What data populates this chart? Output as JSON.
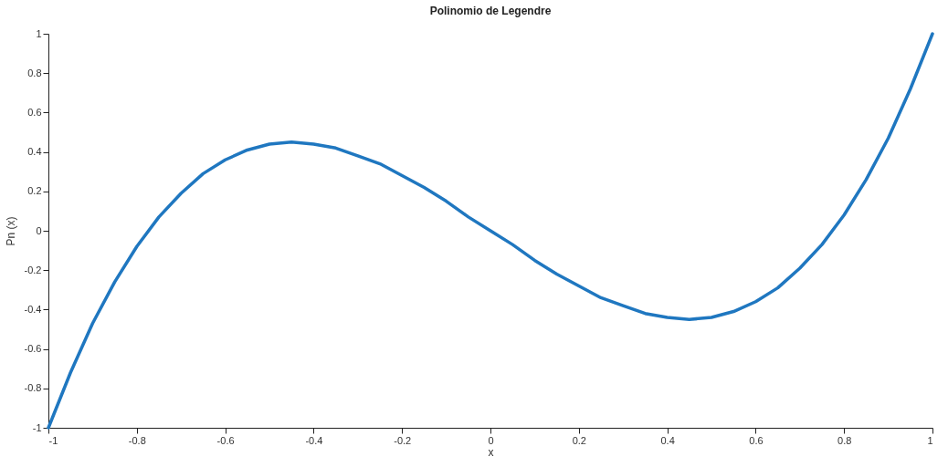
{
  "chart_data": {
    "type": "line",
    "title": "Polinomio de Legendre",
    "xlabel": "x",
    "ylabel": "Pn (x)",
    "x": [
      -1,
      -0.95,
      -0.9,
      -0.85,
      -0.8,
      -0.75,
      -0.7,
      -0.65,
      -0.6,
      -0.55,
      -0.5,
      -0.45,
      -0.4,
      -0.35,
      -0.3,
      -0.25,
      -0.2,
      -0.15,
      -0.1,
      -0.05,
      0,
      0.05,
      0.1,
      0.15,
      0.2,
      0.25,
      0.3,
      0.35,
      0.4,
      0.45,
      0.5,
      0.55,
      0.6,
      0.65,
      0.7,
      0.75,
      0.8,
      0.85,
      0.9,
      0.95,
      1
    ],
    "series": [
      {
        "color": "#1f77c0",
        "values": [
          -1,
          -0.72,
          -0.47,
          -0.26,
          -0.08,
          0.07,
          0.19,
          0.29,
          0.36,
          0.41,
          0.44,
          0.45,
          0.44,
          0.42,
          0.38,
          0.34,
          0.28,
          0.22,
          0.15,
          0.07,
          0,
          -0.07,
          -0.15,
          -0.22,
          -0.28,
          -0.34,
          -0.38,
          -0.42,
          -0.44,
          -0.45,
          -0.44,
          -0.41,
          -0.36,
          -0.29,
          -0.19,
          -0.07,
          0.08,
          0.26,
          0.47,
          0.72,
          1
        ]
      }
    ],
    "xlim": [
      -1,
      1
    ],
    "ylim": [
      -1,
      1
    ],
    "xticks": [
      -1,
      -0.8,
      -0.6,
      -0.4,
      -0.2,
      0,
      0.2,
      0.4,
      0.6,
      0.8,
      1
    ],
    "yticks": [
      -1,
      -0.8,
      -0.6,
      -0.4,
      -0.2,
      0,
      0.2,
      0.4,
      0.6,
      0.8,
      1
    ],
    "grid": false,
    "legend": false,
    "marker": "none",
    "line_style": "solid"
  }
}
